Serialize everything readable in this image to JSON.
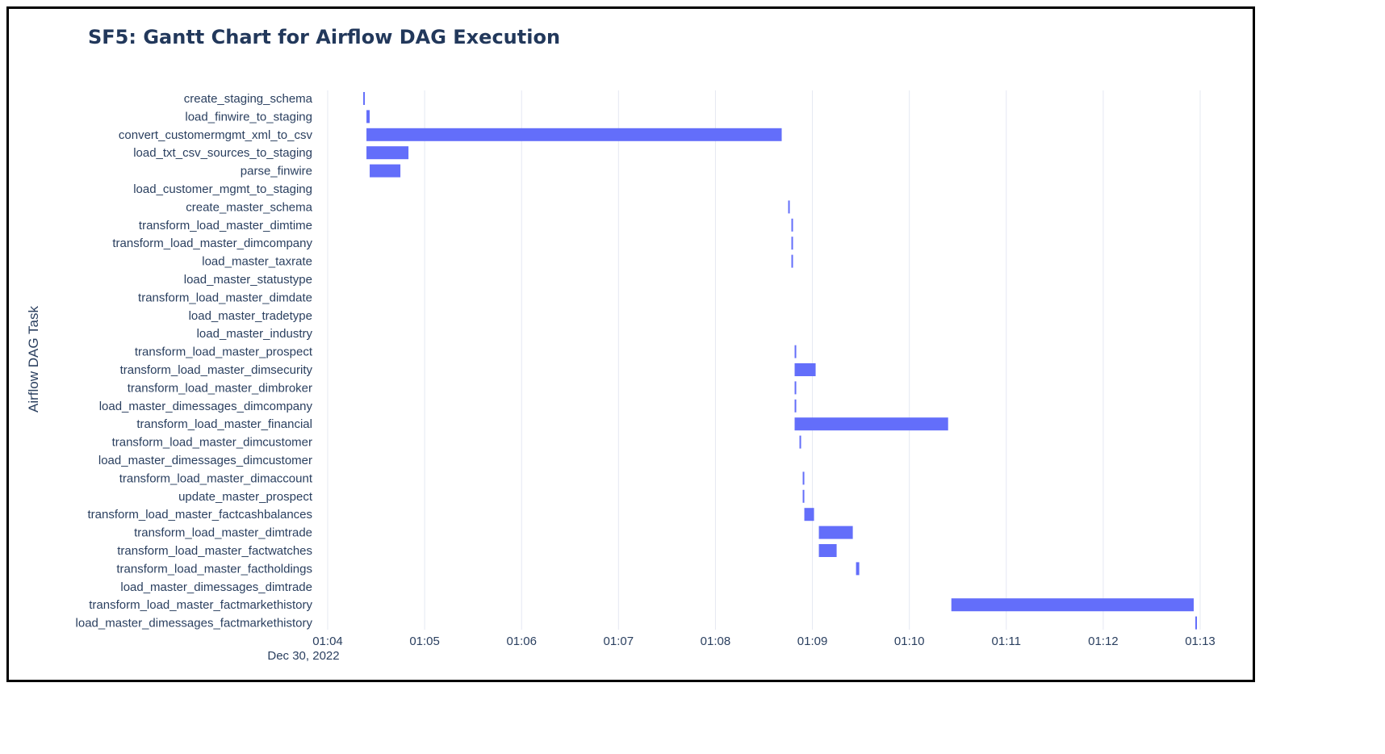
{
  "chart_data": {
    "type": "gantt",
    "title": "SF5: Gantt Chart for Airflow DAG Execution",
    "ylabel": "Airflow DAG Task",
    "date_label": "Dec 30, 2022",
    "x_ticks": [
      "01:04",
      "01:05",
      "01:06",
      "01:07",
      "01:08",
      "01:09",
      "01:10",
      "01:11",
      "01:12",
      "01:13"
    ],
    "xlim": [
      "01:04:00",
      "01:13:00"
    ],
    "grid": true,
    "colors": {
      "bar": "#636efa",
      "grid": "#e5e8f2",
      "text": "#2a3f5f",
      "title": "#22385b",
      "border": "#000000"
    },
    "tasks": [
      {
        "name": "create_staging_schema",
        "start": "01:04:22",
        "end": "01:04:23"
      },
      {
        "name": "load_finwire_to_staging",
        "start": "01:04:24",
        "end": "01:04:26"
      },
      {
        "name": "convert_customermgmt_xml_to_csv",
        "start": "01:04:24",
        "end": "01:08:41"
      },
      {
        "name": "load_txt_csv_sources_to_staging",
        "start": "01:04:24",
        "end": "01:04:50"
      },
      {
        "name": "parse_finwire",
        "start": "01:04:26",
        "end": "01:04:45"
      },
      {
        "name": "load_customer_mgmt_to_staging",
        "start": null,
        "end": null
      },
      {
        "name": "create_master_schema",
        "start": "01:08:45",
        "end": "01:08:46"
      },
      {
        "name": "transform_load_master_dimtime",
        "start": "01:08:47",
        "end": "01:08:48"
      },
      {
        "name": "transform_load_master_dimcompany",
        "start": "01:08:47",
        "end": "01:08:48"
      },
      {
        "name": "load_master_taxrate",
        "start": "01:08:47",
        "end": "01:08:48"
      },
      {
        "name": "load_master_statustype",
        "start": null,
        "end": null
      },
      {
        "name": "transform_load_master_dimdate",
        "start": null,
        "end": null
      },
      {
        "name": "load_master_tradetype",
        "start": null,
        "end": null
      },
      {
        "name": "load_master_industry",
        "start": null,
        "end": null
      },
      {
        "name": "transform_load_master_prospect",
        "start": "01:08:49",
        "end": "01:08:50"
      },
      {
        "name": "transform_load_master_dimsecurity",
        "start": "01:08:49",
        "end": "01:09:02"
      },
      {
        "name": "transform_load_master_dimbroker",
        "start": "01:08:49",
        "end": "01:08:50"
      },
      {
        "name": "load_master_dimessages_dimcompany",
        "start": "01:08:49",
        "end": "01:08:50"
      },
      {
        "name": "transform_load_master_financial",
        "start": "01:08:49",
        "end": "01:10:24"
      },
      {
        "name": "transform_load_master_dimcustomer",
        "start": "01:08:52",
        "end": "01:08:53"
      },
      {
        "name": "load_master_dimessages_dimcustomer",
        "start": null,
        "end": null
      },
      {
        "name": "transform_load_master_dimaccount",
        "start": "01:08:54",
        "end": "01:08:55"
      },
      {
        "name": "update_master_prospect",
        "start": "01:08:54",
        "end": "01:08:55"
      },
      {
        "name": "transform_load_master_factcashbalances",
        "start": "01:08:55",
        "end": "01:09:01"
      },
      {
        "name": "transform_load_master_dimtrade",
        "start": "01:09:04",
        "end": "01:09:25"
      },
      {
        "name": "transform_load_master_factwatches",
        "start": "01:09:04",
        "end": "01:09:15"
      },
      {
        "name": "transform_load_master_factholdings",
        "start": "01:09:27",
        "end": "01:09:29"
      },
      {
        "name": "load_master_dimessages_dimtrade",
        "start": null,
        "end": null
      },
      {
        "name": "transform_load_master_factmarkethistory",
        "start": "01:10:26",
        "end": "01:12:56"
      },
      {
        "name": "load_master_dimessages_factmarkethistory",
        "start": "01:12:57",
        "end": "01:12:58"
      }
    ]
  }
}
